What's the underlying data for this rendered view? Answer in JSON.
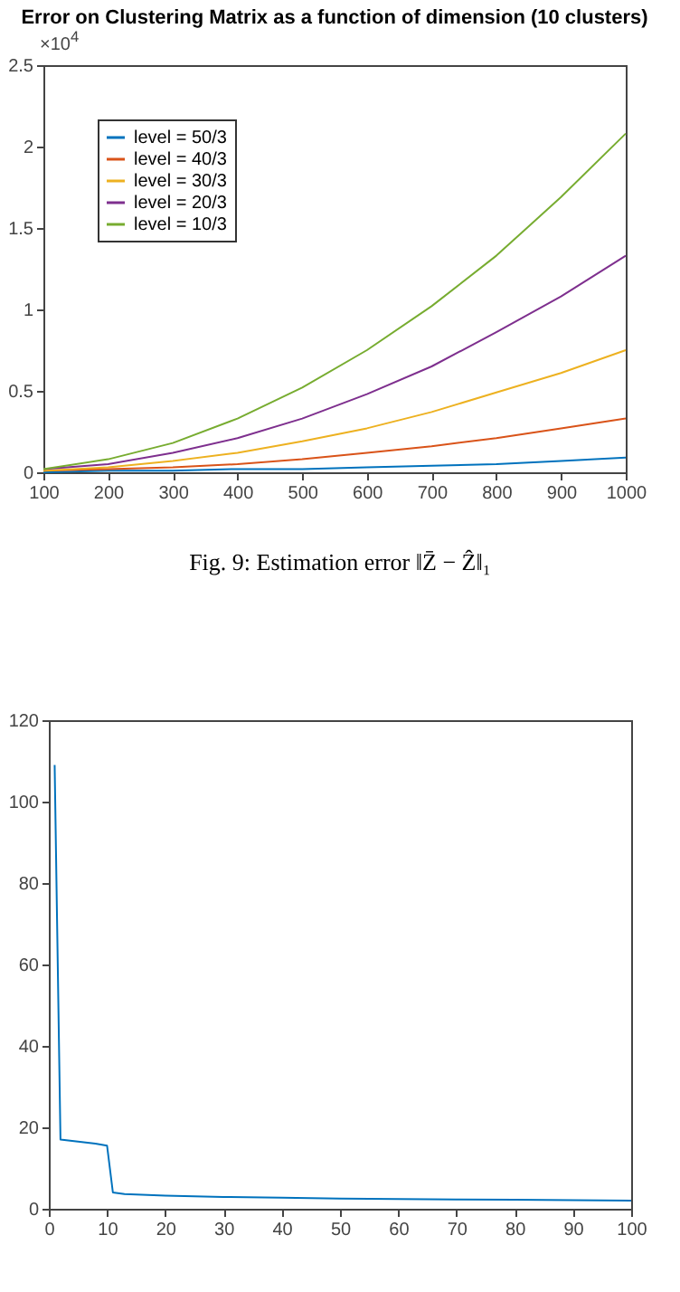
{
  "chart_data": [
    {
      "type": "line",
      "title": "Error on Clustering Matrix as a function of dimension (10 clusters)",
      "annotations": [
        "×10$^{4}$",
        "Fig. 9: Estimation error ‖Z̄ − Ẑ‖₁"
      ],
      "x": [
        100,
        200,
        300,
        400,
        500,
        600,
        700,
        800,
        900,
        1000
      ],
      "series": [
        {
          "name": "level = 50/3",
          "color": "#0072bd",
          "values": [
            0.0,
            0.01,
            0.01,
            0.02,
            0.02,
            0.03,
            0.04,
            0.05,
            0.07,
            0.09
          ]
        },
        {
          "name": "level = 40/3",
          "color": "#d95319",
          "values": [
            0.01,
            0.02,
            0.03,
            0.05,
            0.08,
            0.12,
            0.16,
            0.21,
            0.27,
            0.33
          ]
        },
        {
          "name": "level = 30/3",
          "color": "#edb120",
          "values": [
            0.01,
            0.03,
            0.07,
            0.12,
            0.19,
            0.27,
            0.37,
            0.49,
            0.61,
            0.75
          ]
        },
        {
          "name": "level = 20/3",
          "color": "#7e2f8e",
          "values": [
            0.02,
            0.05,
            0.12,
            0.21,
            0.33,
            0.48,
            0.65,
            0.86,
            1.08,
            1.33
          ]
        },
        {
          "name": "level = 10/3",
          "color": "#77ac30",
          "values": [
            0.02,
            0.08,
            0.18,
            0.33,
            0.52,
            0.75,
            1.02,
            1.33,
            1.69,
            2.08
          ]
        }
      ],
      "xlim": [
        100,
        1000
      ],
      "xticks": [
        100,
        200,
        300,
        400,
        500,
        600,
        700,
        800,
        900,
        1000
      ],
      "ylim": [
        0,
        2.5
      ],
      "yticks": [
        0,
        0.5,
        1,
        1.5,
        2,
        2.5
      ],
      "grid": false,
      "legend": "top left",
      "marker": "none",
      "line_style": "solid"
    },
    {
      "type": "line",
      "x": [
        1,
        2,
        5,
        8,
        10,
        11,
        13,
        20,
        30,
        40,
        50,
        60,
        70,
        80,
        90,
        100
      ],
      "series": [
        {
          "color": "#0072bd",
          "values": [
            109,
            17,
            16.5,
            16,
            15.5,
            4,
            3.6,
            3.2,
            2.9,
            2.7,
            2.5,
            2.4,
            2.3,
            2.2,
            2.1,
            2.0
          ]
        }
      ],
      "xlim": [
        0,
        100
      ],
      "xticks": [
        0,
        10,
        20,
        30,
        40,
        50,
        60,
        70,
        80,
        90,
        100
      ],
      "ylim": [
        0,
        120
      ],
      "yticks": [
        0,
        20,
        40,
        60,
        80,
        100,
        120
      ],
      "grid": false,
      "marker": "none",
      "line_style": "solid"
    }
  ]
}
